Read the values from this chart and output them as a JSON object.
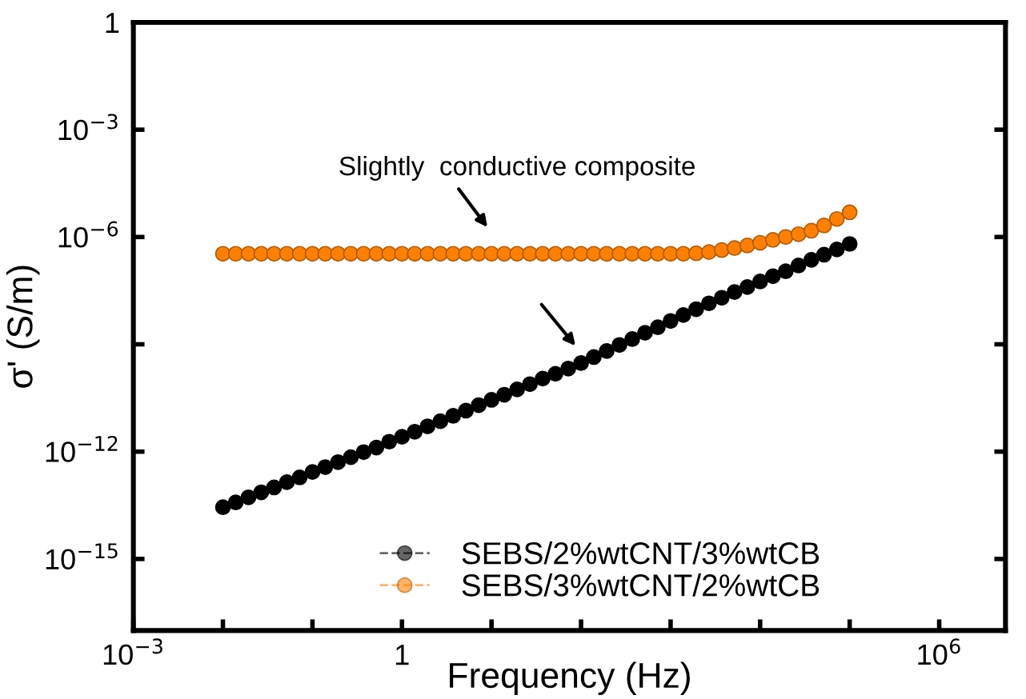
{
  "chart_data": {
    "type": "scatter",
    "xlabel": "Frequency (Hz)",
    "ylabel": "σ' (S/m)",
    "log": "xy",
    "marker": "circle",
    "grid": false,
    "legend": "bottom right",
    "xlim": [
      0.001,
      5500000
    ],
    "ylim": [
      1e-17,
      1
    ],
    "xticks": [
      {
        "value": 0.001,
        "label": "10$^{−3}$"
      },
      {
        "value": 0.01,
        "label": null
      },
      {
        "value": 0.1,
        "label": null
      },
      1,
      {
        "value": 10,
        "label": null
      },
      {
        "value": 100,
        "label": null
      },
      {
        "value": 1000,
        "label": null
      },
      {
        "value": 10000,
        "label": null
      },
      {
        "value": 100000,
        "label": null
      },
      {
        "value": 1000000,
        "label": "10$^{6}$"
      }
    ],
    "yticks": [
      {
        "value": 1e-15,
        "label": "10$^{−15}$"
      },
      {
        "value": 1e-12,
        "label": "10$^{−12}$"
      },
      {
        "value": 1e-09,
        "label": null
      },
      {
        "value": 1e-06,
        "label": "10$^{−6}$"
      },
      {
        "value": 0.001,
        "label": "10$^{−3}$"
      },
      1
    ],
    "x": [
      0.01,
      0.01389,
      0.01931,
      0.02683,
      0.03728,
      0.05179,
      0.07197,
      0.1,
      0.1389,
      0.1931,
      0.2683,
      0.3728,
      0.5179,
      0.7197,
      1,
      1.389,
      1.931,
      2.683,
      3.728,
      5.179,
      7.197,
      10,
      13.89,
      19.31,
      26.83,
      37.28,
      51.79,
      71.97,
      100,
      138.9,
      193.1,
      268.3,
      372.8,
      517.9,
      719.7,
      1000,
      1389,
      1931,
      2683,
      3728,
      5179,
      7197,
      10000,
      13890,
      19310,
      26830,
      37280,
      51790,
      71970,
      100000
    ],
    "series": [
      {
        "name": "SEBS/2%wtCNT/3%wtCB",
        "color": "#000000",
        "values": [
          2.8e-14,
          3.8e-14,
          5.3e-14,
          7.3e-14,
          1e-13,
          1.4e-13,
          1.9e-13,
          2.7e-13,
          3.7e-13,
          5.1e-13,
          7e-13,
          9.7e-13,
          1.3e-12,
          1.9e-12,
          2.6e-12,
          3.6e-12,
          5.1e-12,
          7.1e-12,
          1e-11,
          1.4e-11,
          2e-11,
          2.8e-11,
          3.9e-11,
          5.5e-11,
          7.7e-11,
          1.1e-10,
          1.5e-10,
          2.1e-10,
          3e-10,
          4.4e-10,
          6.5e-10,
          9.6e-10,
          1.4e-09,
          2.1e-09,
          3e-09,
          4.5e-09,
          6.6e-09,
          9.6e-09,
          1.4e-08,
          2e-08,
          2.9e-08,
          4e-08,
          5.7e-08,
          8e-08,
          1.1e-07,
          1.6e-07,
          2.3e-07,
          3.2e-07,
          4.5e-07,
          6.4e-07
        ]
      },
      {
        "name": "SEBS/3%wtCNT/2%wtCB",
        "color": "#ff8000",
        "values": [
          3.4e-07,
          3.4e-07,
          3.4e-07,
          3.4e-07,
          3.4e-07,
          3.4e-07,
          3.4e-07,
          3.4e-07,
          3.4e-07,
          3.4e-07,
          3.4e-07,
          3.4e-07,
          3.4e-07,
          3.4e-07,
          3.4e-07,
          3.4e-07,
          3.4e-07,
          3.4e-07,
          3.4e-07,
          3.4e-07,
          3.4e-07,
          3.4e-07,
          3.4e-07,
          3.4e-07,
          3.4e-07,
          3.4e-07,
          3.4e-07,
          3.4e-07,
          3.4e-07,
          3.4e-07,
          3.4e-07,
          3.4e-07,
          3.4e-07,
          3.4e-07,
          3.4e-07,
          3.4e-07,
          3.4e-07,
          3.5e-07,
          3.8e-07,
          4.3e-07,
          4.9e-07,
          5.8e-07,
          6.9e-07,
          8.3e-07,
          1e-06,
          1.2e-06,
          1.5e-06,
          2.1e-06,
          3.2e-06,
          4.9e-06
        ]
      }
    ],
    "annotations": [
      "Slightly  conductive composite"
    ]
  }
}
